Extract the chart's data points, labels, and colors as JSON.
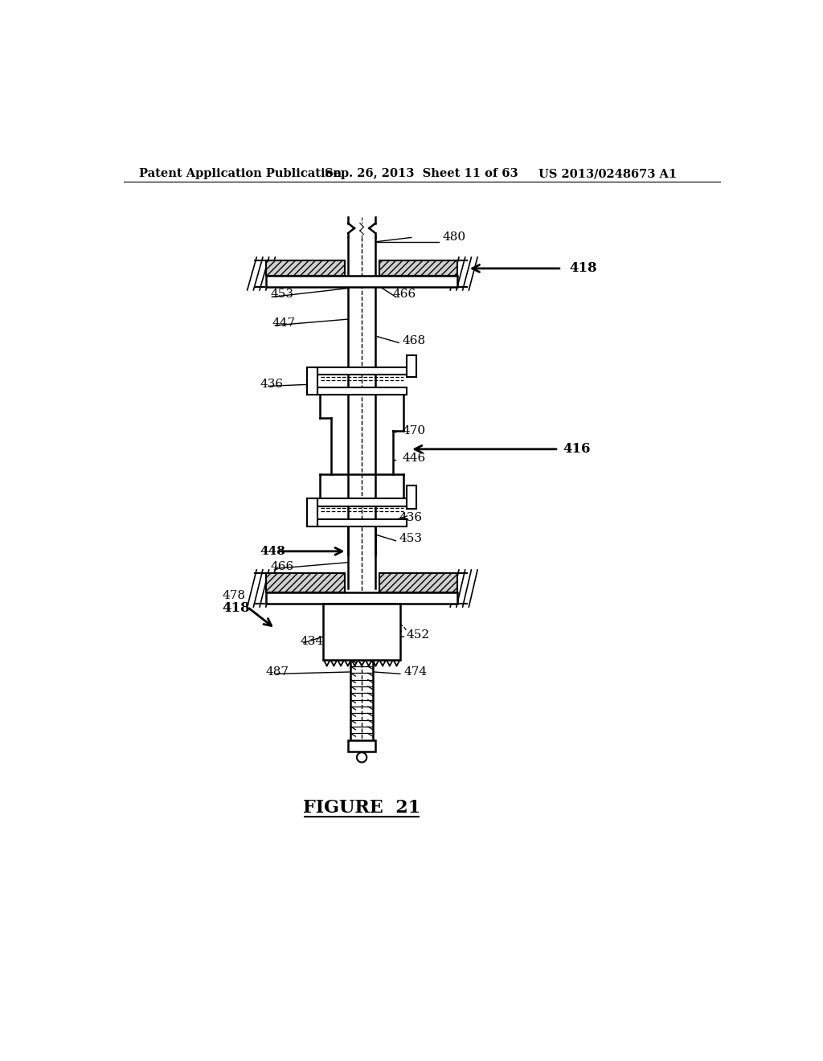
{
  "header_left": "Patent Application Publication",
  "header_mid": "Sep. 26, 2013  Sheet 11 of 63",
  "header_right": "US 2013/0248673 A1",
  "figure_label": "FIGURE  21",
  "background_color": "#ffffff",
  "line_color": "#000000"
}
